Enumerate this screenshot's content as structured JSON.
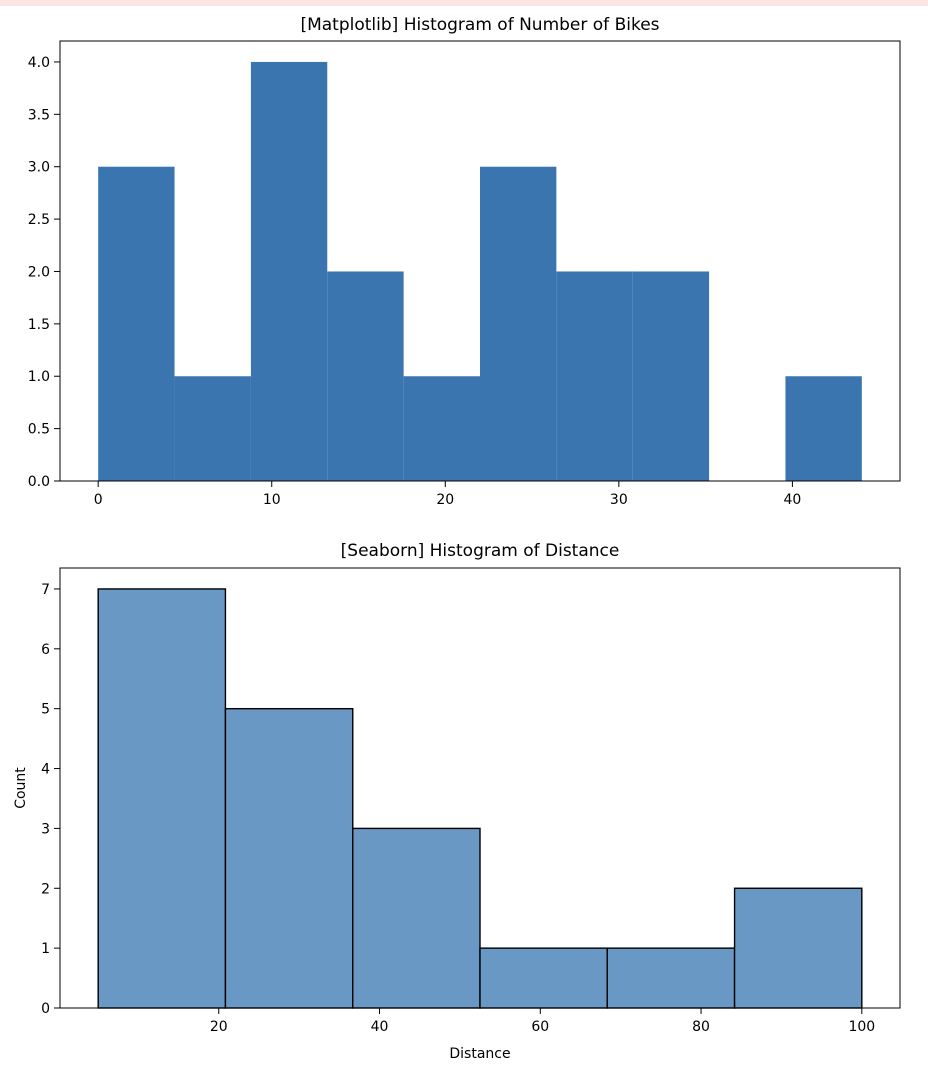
{
  "chart_data": [
    {
      "type": "bar",
      "title": "[Matplotlib] Histogram of Number of Bikes",
      "xlabel": "",
      "ylabel": "",
      "color": "#3b75af",
      "bin_edges": [
        0,
        4.4,
        8.8,
        13.2,
        17.6,
        22.0,
        26.4,
        30.8,
        35.2,
        39.6,
        44.0
      ],
      "values": [
        3,
        1,
        4,
        2,
        1,
        3,
        2,
        2,
        0,
        1
      ],
      "xlim": [
        -2.2,
        46.2
      ],
      "ylim": [
        0,
        4.2
      ],
      "xticks": [
        0,
        10,
        20,
        30,
        40
      ],
      "xtick_labels": [
        "0",
        "10",
        "20",
        "30",
        "40"
      ],
      "yticks": [
        0,
        0.5,
        1,
        1.5,
        2,
        2.5,
        3,
        3.5,
        4
      ],
      "ytick_labels": [
        "0.0",
        "0.5",
        "1.0",
        "1.5",
        "2.0",
        "2.5",
        "3.0",
        "3.5",
        "4.0"
      ],
      "grid": false,
      "bar_edges": false
    },
    {
      "type": "bar",
      "title": "[Seaborn] Histogram of Distance",
      "xlabel": "Distance",
      "ylabel": "Count",
      "color": "#6a98c5",
      "edge_color": "#000000",
      "bin_edges": [
        5,
        20.83,
        36.67,
        52.5,
        68.33,
        84.17,
        100
      ],
      "values": [
        7,
        5,
        3,
        1,
        1,
        2
      ],
      "xlim": [
        0.25,
        104.75
      ],
      "ylim": [
        0,
        7.35
      ],
      "xticks": [
        20,
        40,
        60,
        80,
        100
      ],
      "xtick_labels": [
        "20",
        "40",
        "60",
        "80",
        "100"
      ],
      "yticks": [
        0,
        1,
        2,
        3,
        4,
        5,
        6,
        7
      ],
      "ytick_labels": [
        "0",
        "1",
        "2",
        "3",
        "4",
        "5",
        "6",
        "7"
      ],
      "grid": false,
      "bar_edges": true
    }
  ]
}
